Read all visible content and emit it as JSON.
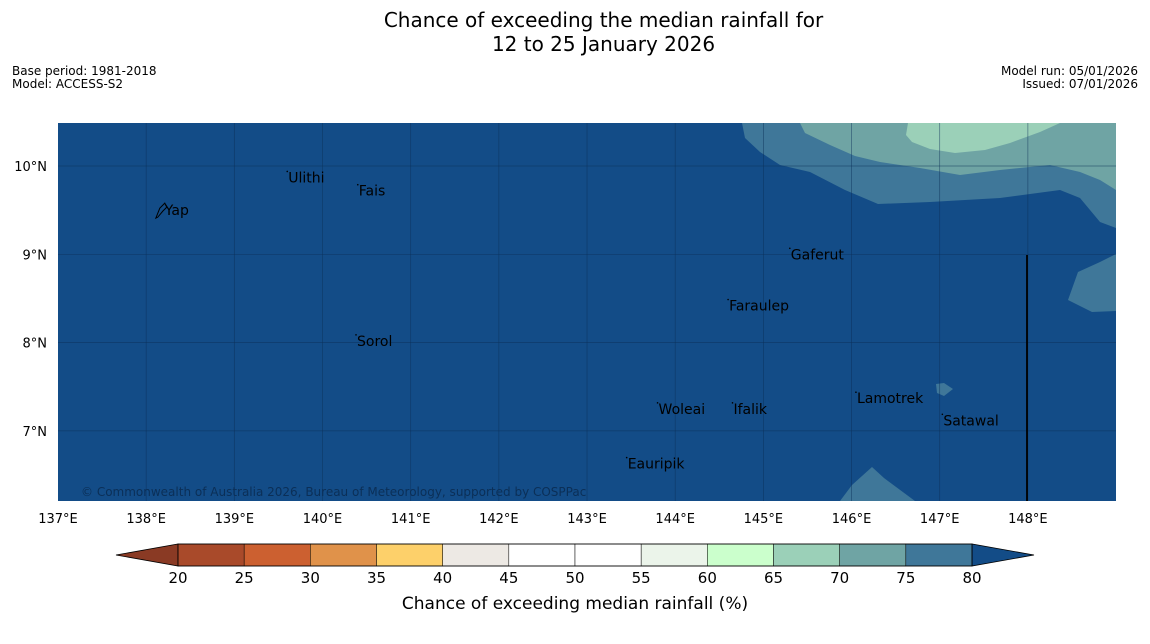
{
  "title": {
    "line1": "Chance of exceeding the median rainfall for",
    "line2": "12 to 25 January 2026"
  },
  "meta_left": {
    "base_period": "Base period: 1981-2018",
    "model": "Model: ACCESS-S2"
  },
  "meta_right": {
    "model_run": "Model run: 05/01/2026",
    "issued": "Issued: 07/01/2026"
  },
  "map": {
    "lon_ticks": [
      "137°E",
      "138°E",
      "139°E",
      "140°E",
      "141°E",
      "142°E",
      "143°E",
      "144°E",
      "145°E",
      "146°E",
      "147°E",
      "148°E"
    ],
    "lat_ticks": [
      "10°N",
      "9°N",
      "8°N",
      "7°N"
    ],
    "places": [
      {
        "name": "Yap",
        "lon": 138.2,
        "lat": 9.5
      },
      {
        "name": "Ulithi",
        "lon": 139.6,
        "lat": 9.87
      },
      {
        "name": "Fais",
        "lon": 140.4,
        "lat": 9.72
      },
      {
        "name": "Gaferut",
        "lon": 145.3,
        "lat": 9.0
      },
      {
        "name": "Faraulep",
        "lon": 144.6,
        "lat": 8.42
      },
      {
        "name": "Sorol",
        "lon": 140.38,
        "lat": 8.02
      },
      {
        "name": "Lamotrek",
        "lon": 146.05,
        "lat": 7.37
      },
      {
        "name": "Woleai",
        "lon": 143.8,
        "lat": 7.25
      },
      {
        "name": "Ifalik",
        "lon": 144.65,
        "lat": 7.25
      },
      {
        "name": "Satawal",
        "lon": 147.03,
        "lat": 7.12
      },
      {
        "name": "Eauripik",
        "lon": 143.45,
        "lat": 6.63
      }
    ],
    "copyright": "© Commonwealth of Australia 2026, Bureau of Meteorology, supported by COSPPac"
  },
  "colorbar": {
    "ticks": [
      "20",
      "25",
      "30",
      "35",
      "40",
      "45",
      "50",
      "55",
      "60",
      "65",
      "70",
      "75",
      "80"
    ],
    "colors": [
      "#a94a2a",
      "#cc6030",
      "#e0924a",
      "#fdd06a",
      "#ede9e4",
      "#ffffff",
      "#ffffff",
      "#ebf4ea",
      "#cbffcc",
      "#9bd0b8",
      "#6fa4a4",
      "#3f7799"
    ],
    "under_color": "#8a3a24",
    "over_color": "#134c87",
    "label": "Chance of exceeding median rainfall (%)"
  },
  "colors": {
    "c80": "#134c87",
    "c75": "#3f7799",
    "c70": "#6fa4a4",
    "c65": "#9bd0b8"
  }
}
